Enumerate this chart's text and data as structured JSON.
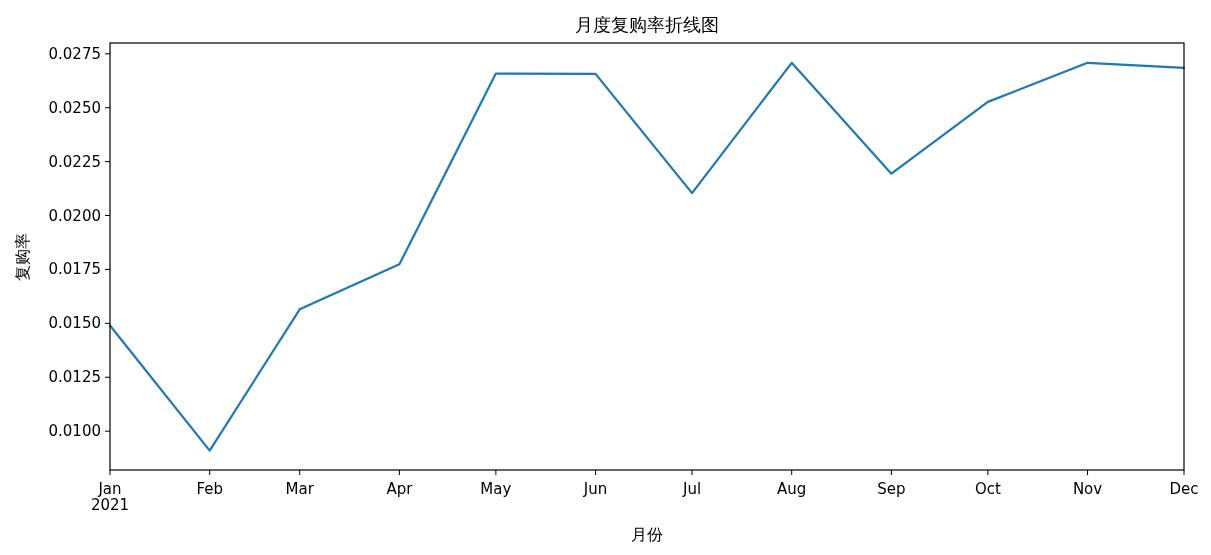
{
  "chart_data": {
    "type": "line",
    "title": "月度复购率折线图",
    "xlabel": "月份",
    "ylabel": "复购率",
    "x": [
      "2021-01",
      "2021-02",
      "2021-03",
      "2021-04",
      "2021-05",
      "2021-06",
      "2021-07",
      "2021-08",
      "2021-09",
      "2021-10",
      "2021-11",
      "2021-12"
    ],
    "series": [
      {
        "color": "#1f77b4",
        "values": [
          0.0149,
          0.0091,
          0.01565,
          0.01774,
          0.02658,
          0.02657,
          0.02104,
          0.02708,
          0.02194,
          0.02527,
          0.02708,
          0.02685
        ]
      }
    ],
    "xlim": [
      "2021-01",
      "2021-12"
    ],
    "xticks": [
      {
        "value": "2021-01",
        "label": "Jan\n2021"
      },
      {
        "value": "2021-02",
        "label": "Feb"
      },
      {
        "value": "2021-03",
        "label": "Mar"
      },
      {
        "value": "2021-04",
        "label": "Apr"
      },
      {
        "value": "2021-05",
        "label": "May"
      },
      {
        "value": "2021-06",
        "label": "Jun"
      },
      {
        "value": "2021-07",
        "label": "Jul"
      },
      {
        "value": "2021-08",
        "label": "Aug"
      },
      {
        "value": "2021-09",
        "label": "Sep"
      },
      {
        "value": "2021-10",
        "label": "Oct"
      },
      {
        "value": "2021-11",
        "label": "Nov"
      },
      {
        "value": "2021-12",
        "label": "Dec"
      }
    ],
    "ylim": [
      0.0082,
      0.028
    ],
    "yticks": [
      {
        "value": 0.01,
        "label": "0.0100"
      },
      {
        "value": 0.0125,
        "label": "0.0125"
      },
      {
        "value": 0.015,
        "label": "0.0150"
      },
      {
        "value": 0.0175,
        "label": "0.0175"
      },
      {
        "value": 0.02,
        "label": "0.0200"
      },
      {
        "value": 0.0225,
        "label": "0.0225"
      },
      {
        "value": 0.025,
        "label": "0.0250"
      },
      {
        "value": 0.0275,
        "label": "0.0275"
      }
    ],
    "grid": false,
    "line_style": "solid",
    "marker": "none"
  }
}
